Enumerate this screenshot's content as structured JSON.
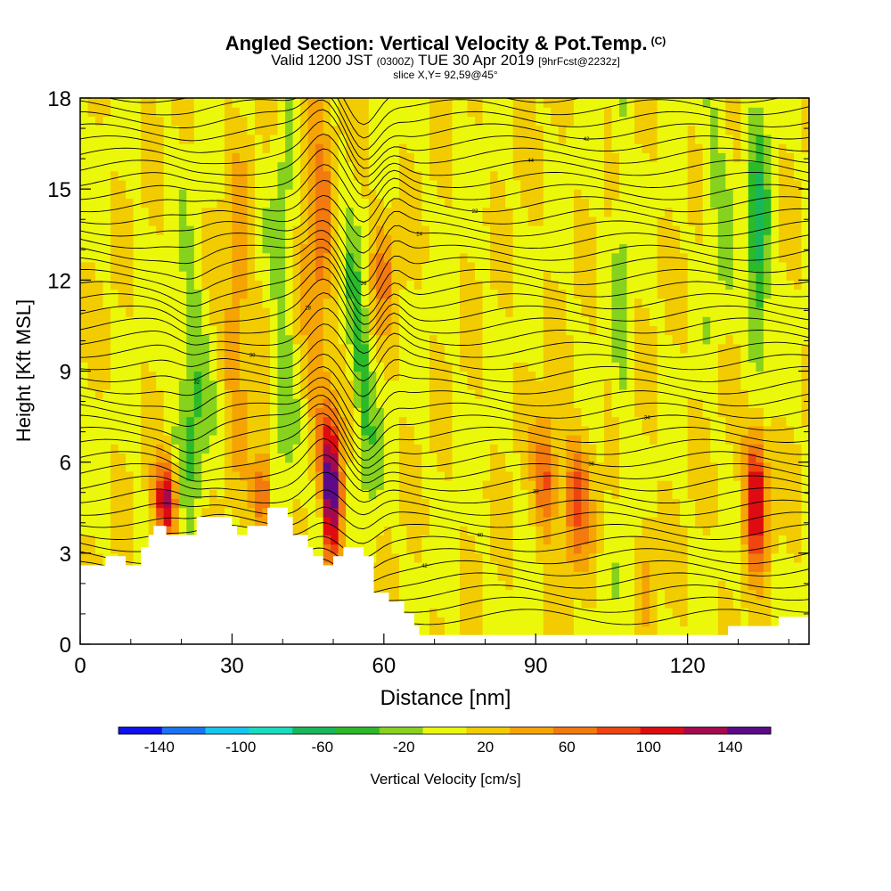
{
  "header": {
    "title": "Angled Section: Vertical Velocity & Pot.Temp.",
    "title_suffix": "(C)",
    "valid_label": "Valid 1200 JST",
    "valid_zulu": "(0300Z)",
    "valid_date": "TUE 30 Apr 2019",
    "forecast_tag": "[9hrFcst@2232z]",
    "slice": "slice X,Y= 92,59@45°"
  },
  "chart_data": {
    "type": "heatmap",
    "xlabel": "Distance [nm]",
    "ylabel": "Height [Kft MSL]",
    "xlim": [
      0,
      144
    ],
    "ylim": [
      0,
      18
    ],
    "x_ticks": [
      "0",
      "30",
      "60",
      "90",
      "120"
    ],
    "x_tick_values": [
      0,
      30,
      60,
      90,
      120
    ],
    "y_ticks": [
      "0",
      "3",
      "6",
      "9",
      "12",
      "15",
      "18"
    ],
    "y_tick_values": [
      0,
      3,
      6,
      9,
      12,
      15,
      18
    ],
    "colorbar": {
      "label": "Vertical Velocity [cm/s]",
      "range": [
        -160,
        160
      ],
      "tick_labels": [
        "-140",
        "-100",
        "-60",
        "-20",
        "20",
        "60",
        "100",
        "140"
      ],
      "tick_values": [
        -140,
        -100,
        -60,
        -20,
        20,
        60,
        100,
        140
      ],
      "colors": [
        "#1010ee",
        "#1a73f0",
        "#16c6ef",
        "#18dcc0",
        "#18b85a",
        "#2aba2a",
        "#86d21c",
        "#ecf80a",
        "#f2cc00",
        "#f5a404",
        "#f27a0e",
        "#ef4510",
        "#de0c10",
        "#a60a4c",
        "#5c0a8a"
      ]
    },
    "terrain_kft": [
      [
        0,
        2.6
      ],
      [
        5,
        2.6
      ],
      [
        5,
        2.9
      ],
      [
        9,
        2.9
      ],
      [
        9,
        2.6
      ],
      [
        12,
        2.6
      ],
      [
        12,
        3.2
      ],
      [
        13.5,
        3.2
      ],
      [
        13.5,
        3.6
      ],
      [
        14.5,
        3.6
      ],
      [
        14.5,
        3.9
      ],
      [
        17,
        3.9
      ],
      [
        17,
        3.6
      ],
      [
        23,
        3.6
      ],
      [
        23,
        4.2
      ],
      [
        30,
        4.2
      ],
      [
        30,
        3.9
      ],
      [
        31,
        3.9
      ],
      [
        31,
        3.6
      ],
      [
        33,
        3.6
      ],
      [
        33,
        3.9
      ],
      [
        37,
        3.9
      ],
      [
        37,
        4.5
      ],
      [
        41,
        4.5
      ],
      [
        41,
        4.2
      ],
      [
        42,
        4.2
      ],
      [
        42,
        3.6
      ],
      [
        45,
        3.6
      ],
      [
        45,
        3.2
      ],
      [
        46,
        3.2
      ],
      [
        46,
        2.9
      ],
      [
        48,
        2.9
      ],
      [
        48,
        2.6
      ],
      [
        50,
        2.6
      ],
      [
        50,
        2.9
      ],
      [
        52,
        2.9
      ],
      [
        52,
        3.2
      ],
      [
        56,
        3.2
      ],
      [
        56,
        2.9
      ],
      [
        58,
        2.9
      ],
      [
        58,
        1.7
      ],
      [
        61,
        1.7
      ],
      [
        61,
        1.4
      ],
      [
        64,
        1.4
      ],
      [
        64,
        1.0
      ],
      [
        66,
        1.0
      ],
      [
        66,
        0.6
      ],
      [
        67,
        0.6
      ],
      [
        67,
        0.3
      ],
      [
        128,
        0.3
      ],
      [
        128,
        0.6
      ],
      [
        138,
        0.6
      ],
      [
        138,
        0.9
      ],
      [
        144,
        0.9
      ]
    ],
    "theta_labels": [
      "44",
      "42",
      "40",
      "38",
      "36",
      "34",
      "32",
      "30",
      "28",
      "26",
      "24",
      "22"
    ]
  }
}
